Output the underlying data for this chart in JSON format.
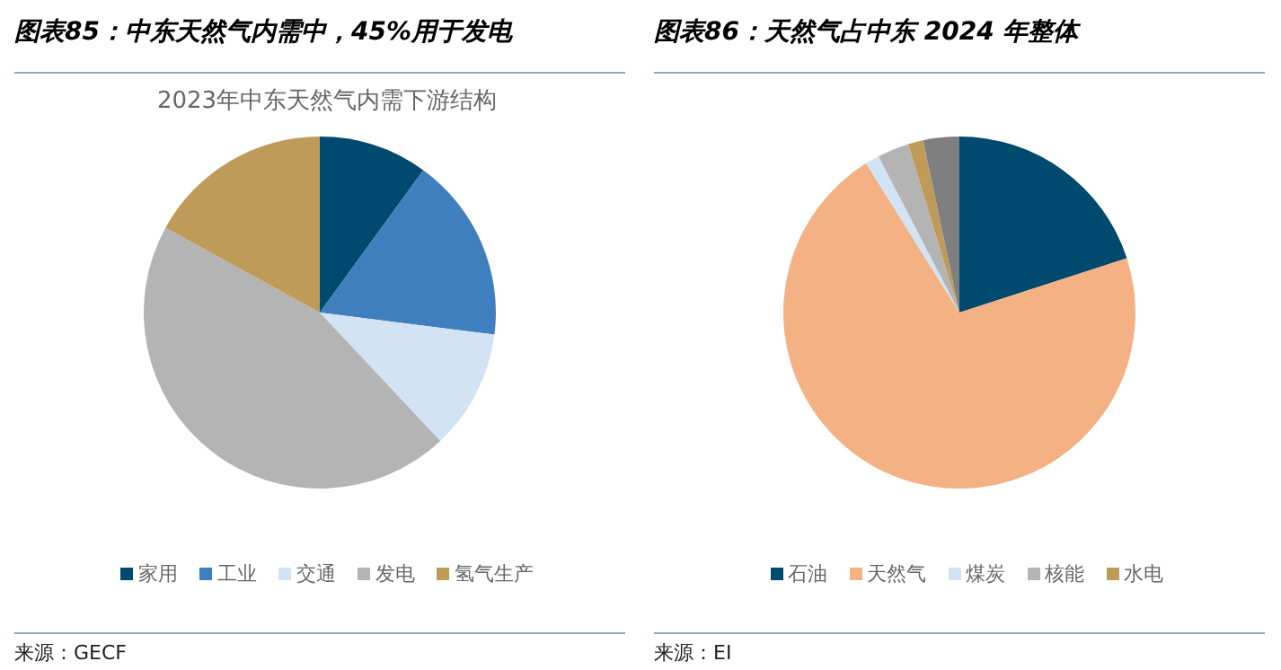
{
  "chart_data": [
    {
      "type": "pie",
      "title": "图表85：中东天然气内需中，45%用于发电",
      "subtitle": "2023年中东天然气内需下游结构",
      "categories": [
        "家用",
        "工业",
        "交通",
        "发电",
        "氢气生产"
      ],
      "values": [
        10,
        17,
        11,
        45,
        17
      ],
      "colors": [
        "#004a6f",
        "#3f7fbd",
        "#d2e3f3",
        "#b4b4b4",
        "#bf9b5a"
      ],
      "legend": "bottom",
      "annotations": [
        "来源：GECF"
      ]
    },
    {
      "type": "pie",
      "title": "图表86：天然气占中东 2024 年整体",
      "categories": [
        "石油",
        "天然气",
        "煤炭",
        "核能",
        "水电",
        null
      ],
      "values": [
        20,
        71.1,
        1.3,
        2.9,
        1.4,
        3.3
      ],
      "colors": [
        "#004a6f",
        "#f4b183",
        "#d2e3f3",
        "#b4b4b4",
        "#bf9b5a",
        "#7f7f7f"
      ],
      "legend": "bottom",
      "annotations": [
        "来源：EI"
      ]
    }
  ]
}
